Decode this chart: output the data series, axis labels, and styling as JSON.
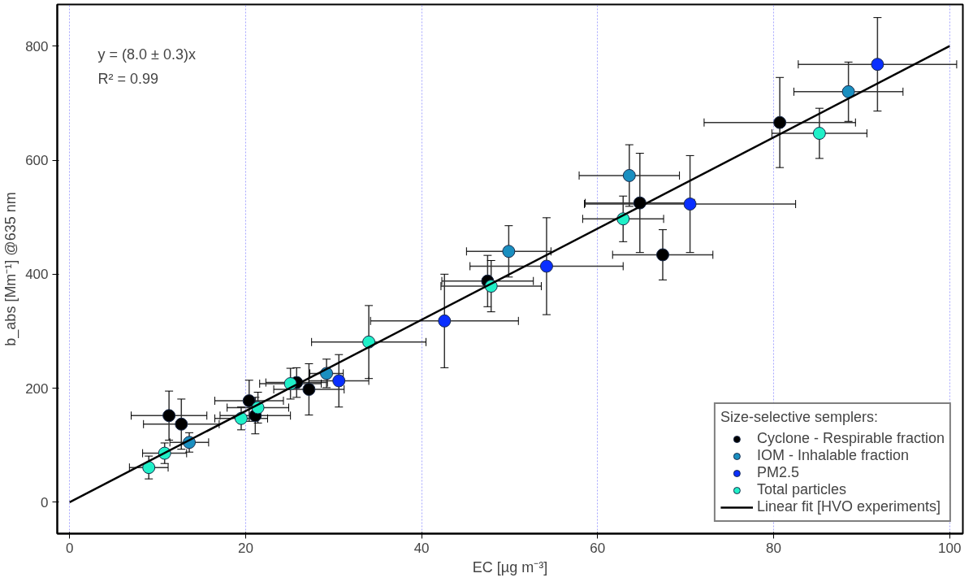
{
  "chart_data": {
    "type": "scatter",
    "xlabel": "EC [µg m⁻³]",
    "ylabel": "b_abs [Mm⁻¹] @635 nm",
    "legend_title": "Size-selective semplers:",
    "xlim": [
      -1.4,
      101.5
    ],
    "ylim": [
      -55,
      873
    ],
    "xticks": [
      0,
      20,
      40,
      60,
      80,
      100
    ],
    "yticks": [
      0,
      200,
      400,
      600,
      800
    ],
    "grid": "x",
    "legend": "bottom right",
    "marker": "circle",
    "annotations": [
      "y = (8.0 ± 0.3)x",
      "R² = 0.99"
    ],
    "series": [
      {
        "name": "Cyclone - Respirable fraction",
        "color": "#000000",
        "x": [
          11.3,
          12.7,
          20.4,
          21.1,
          25.8,
          27.2,
          47.5,
          64.8,
          67.4,
          80.7
        ],
        "values": [
          152,
          137,
          178,
          152,
          210,
          198,
          388,
          525,
          434,
          666
        ],
        "xerrors": [
          4.3,
          4.3,
          3.9,
          4,
          3.5,
          4,
          5.2,
          6.2,
          5.7,
          8.6
        ],
        "errors": [
          43,
          44,
          36,
          32,
          26,
          45,
          45,
          87,
          44,
          79
        ]
      },
      {
        "name": "IOM - Inhalable fraction",
        "color": "#1a8fc0",
        "x": [
          13.6,
          29.2,
          49.9,
          63.6,
          88.5
        ],
        "values": [
          105,
          226,
          440,
          573,
          720
        ],
        "xerrors": [
          2.2,
          1.9,
          4.8,
          5.7,
          6.2
        ],
        "errors": [
          17,
          25,
          45,
          54,
          52
        ]
      },
      {
        "name": "PM2.5",
        "color": "#0a2fff",
        "x": [
          30.6,
          42.6,
          54.2,
          70.5,
          91.8
        ],
        "values": [
          213,
          318,
          414,
          523,
          768
        ],
        "xerrors": [
          3.4,
          8.4,
          8.7,
          12,
          9
        ],
        "errors": [
          46,
          82,
          85,
          85,
          82
        ]
      },
      {
        "name": "Total particles",
        "color": "#20f0c8",
        "x": [
          9.0,
          10.8,
          19.5,
          21.4,
          25.1,
          34.0,
          47.9,
          62.9,
          85.2
        ],
        "values": [
          61,
          86,
          147,
          166,
          208,
          281,
          379,
          497,
          647
        ],
        "xerrors": [
          2.2,
          2.5,
          3,
          3.5,
          3.5,
          6.5,
          5.7,
          4.6,
          5.4
        ],
        "errors": [
          20,
          18,
          20,
          27,
          27,
          64,
          45,
          40,
          44
        ]
      },
      {
        "name": "Linear fit [HVO experiments]",
        "type": "line",
        "color": "#000000",
        "x": [
          0,
          100
        ],
        "values": [
          0,
          800
        ],
        "marker": "none",
        "line_style": "solid"
      }
    ]
  }
}
